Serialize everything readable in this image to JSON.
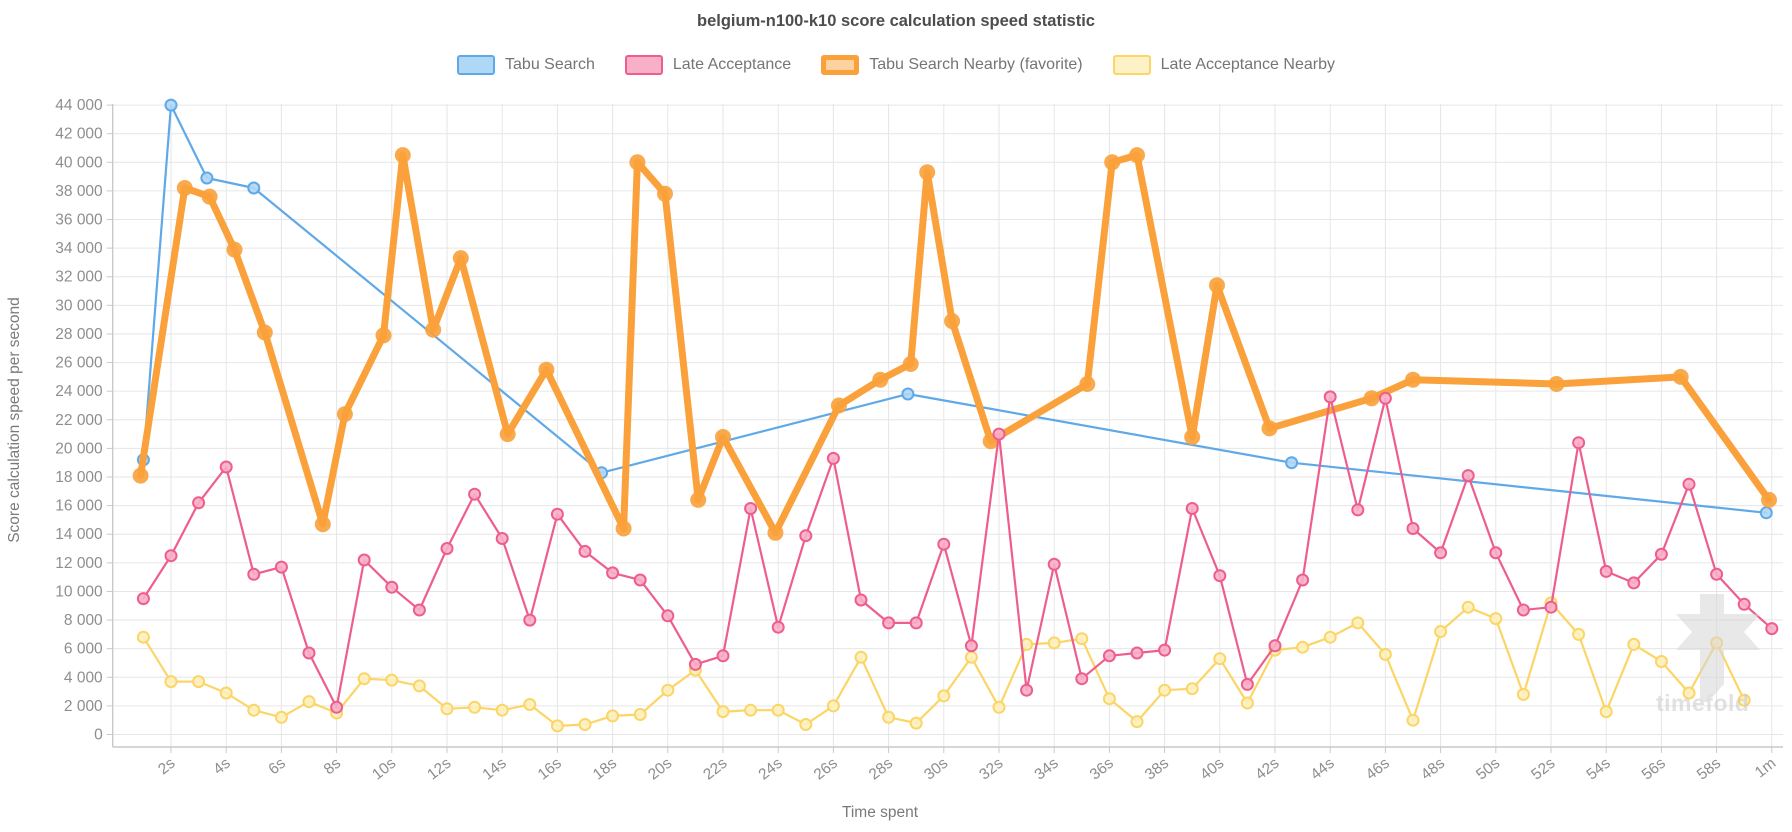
{
  "title": "belgium-n100-k10 score calculation speed statistic",
  "watermark_text": "timefold",
  "chart_data": {
    "type": "line",
    "title": "belgium-n100-k10 score calculation speed statistic",
    "xlabel": "Time spent",
    "ylabel": "Score calculation speed per second",
    "x_unit": "seconds",
    "ylim": [
      0,
      44000
    ],
    "y_tick_step": 2000,
    "grid": true,
    "legend_position": "top",
    "x_ticks": [
      {
        "sec": 2,
        "label": "2s"
      },
      {
        "sec": 4,
        "label": "4s"
      },
      {
        "sec": 6,
        "label": "6s"
      },
      {
        "sec": 8,
        "label": "8s"
      },
      {
        "sec": 10,
        "label": "10s"
      },
      {
        "sec": 12,
        "label": "12s"
      },
      {
        "sec": 14,
        "label": "14s"
      },
      {
        "sec": 16,
        "label": "16s"
      },
      {
        "sec": 18,
        "label": "18s"
      },
      {
        "sec": 20,
        "label": "20s"
      },
      {
        "sec": 22,
        "label": "22s"
      },
      {
        "sec": 24,
        "label": "24s"
      },
      {
        "sec": 26,
        "label": "26s"
      },
      {
        "sec": 28,
        "label": "28s"
      },
      {
        "sec": 30,
        "label": "30s"
      },
      {
        "sec": 32,
        "label": "32s"
      },
      {
        "sec": 34,
        "label": "34s"
      },
      {
        "sec": 36,
        "label": "36s"
      },
      {
        "sec": 38,
        "label": "38s"
      },
      {
        "sec": 40,
        "label": "40s"
      },
      {
        "sec": 42,
        "label": "42s"
      },
      {
        "sec": 44,
        "label": "44s"
      },
      {
        "sec": 46,
        "label": "46s"
      },
      {
        "sec": 48,
        "label": "48s"
      },
      {
        "sec": 50,
        "label": "50s"
      },
      {
        "sec": 52,
        "label": "52s"
      },
      {
        "sec": 54,
        "label": "54s"
      },
      {
        "sec": 56,
        "label": "56s"
      },
      {
        "sec": 58,
        "label": "58s"
      },
      {
        "sec": 60,
        "label": "1m"
      }
    ],
    "draw_order": [
      0,
      3,
      2,
      1
    ],
    "series": [
      {
        "name": "Tabu Search",
        "color": "#5FA9E8",
        "marker_fill": "#AFD7F6",
        "swatch_fill": "#AFD7F6",
        "line_width": 2.2,
        "marker_radius": 5.5,
        "swatch_border_width": 2,
        "points": [
          [
            1,
            19200
          ],
          [
            2,
            44000
          ],
          [
            3.3,
            38900
          ],
          [
            5,
            38200
          ],
          [
            17.6,
            18300
          ],
          [
            28.7,
            23800
          ],
          [
            42.6,
            19000
          ],
          [
            59.8,
            15500
          ]
        ]
      },
      {
        "name": "Late Acceptance",
        "color": "#EE5E8C",
        "marker_fill": "#F8AFC8",
        "swatch_fill": "#F8AFC8",
        "line_width": 2.2,
        "marker_radius": 5.5,
        "swatch_border_width": 2,
        "x_start": 1,
        "x_step": 1,
        "values": [
          9500,
          12500,
          16200,
          18700,
          11200,
          11700,
          5700,
          1900,
          12200,
          10300,
          8700,
          13000,
          16800,
          13700,
          8000,
          15400,
          12800,
          11300,
          10800,
          8300,
          4900,
          5500,
          15800,
          7500,
          13900,
          19300,
          9400,
          7800,
          7800,
          13300,
          6200,
          21000,
          3100,
          11900,
          3900,
          5500,
          5700,
          5900,
          15800,
          11100,
          3500,
          6200,
          10800,
          23600,
          15700,
          23500,
          14400,
          12700,
          18100,
          12700,
          8700,
          8900,
          20400,
          11400,
          10600,
          12600,
          17500,
          11200,
          9100,
          7400
        ]
      },
      {
        "name": "Tabu Search Nearby (favorite)",
        "color": "#FAA13B",
        "marker_fill": "#FAA13B",
        "swatch_fill": "#FBD2A0",
        "line_width": 7,
        "marker_radius": 8,
        "swatch_border_width": 5,
        "points": [
          [
            0.9,
            18100
          ],
          [
            2.5,
            38200
          ],
          [
            3.4,
            37600
          ],
          [
            4.3,
            33900
          ],
          [
            5.4,
            28100
          ],
          [
            7.5,
            14700
          ],
          [
            8.3,
            22400
          ],
          [
            9.7,
            27900
          ],
          [
            10.4,
            40500
          ],
          [
            11.5,
            28300
          ],
          [
            12.5,
            33300
          ],
          [
            14.2,
            21000
          ],
          [
            15.6,
            25500
          ],
          [
            18.4,
            14400
          ],
          [
            18.9,
            40000
          ],
          [
            19.9,
            37800
          ],
          [
            21.1,
            16400
          ],
          [
            22,
            20800
          ],
          [
            23.9,
            14100
          ],
          [
            26.2,
            23000
          ],
          [
            27.7,
            24800
          ],
          [
            28.8,
            25900
          ],
          [
            29.4,
            39300
          ],
          [
            30.3,
            28900
          ],
          [
            31.7,
            20500
          ],
          [
            35.2,
            24500
          ],
          [
            36.1,
            40000
          ],
          [
            37,
            40500
          ],
          [
            39,
            20800
          ],
          [
            39.9,
            31400
          ],
          [
            41.8,
            21400
          ],
          [
            45.5,
            23500
          ],
          [
            47,
            24800
          ],
          [
            52.2,
            24500
          ],
          [
            56.7,
            25000
          ],
          [
            59.9,
            16400
          ]
        ]
      },
      {
        "name": "Late Acceptance Nearby",
        "color": "#FBD565",
        "marker_fill": "#FDF0C0",
        "swatch_fill": "#FDF2C5",
        "line_width": 2.2,
        "marker_radius": 5.5,
        "swatch_border_width": 2,
        "x_start": 1,
        "x_step": 1,
        "values": [
          6800,
          3700,
          3700,
          2900,
          1700,
          1200,
          2300,
          1500,
          3900,
          3800,
          3400,
          1800,
          1900,
          1700,
          2100,
          600,
          700,
          1300,
          1400,
          3100,
          4500,
          1600,
          1700,
          1700,
          700,
          2000,
          5400,
          1200,
          800,
          2700,
          5400,
          1900,
          6300,
          6400,
          6700,
          2500,
          900,
          3100,
          3200,
          5300,
          2200,
          5900,
          6100,
          6800,
          7800,
          5600,
          1000,
          7200,
          8900,
          8100,
          2800,
          9200,
          7000,
          1600,
          6300,
          5100,
          2900,
          6400,
          2400
        ]
      }
    ],
    "style": {
      "grid_color": "#e6e6e6",
      "axis_color": "#c9c9c9",
      "tick_text_color": "#8e8e8e",
      "axis_title_color": "#7a7a7a",
      "title_color": "#4d4d4d",
      "watermark_color": "#cfcfcf"
    }
  }
}
